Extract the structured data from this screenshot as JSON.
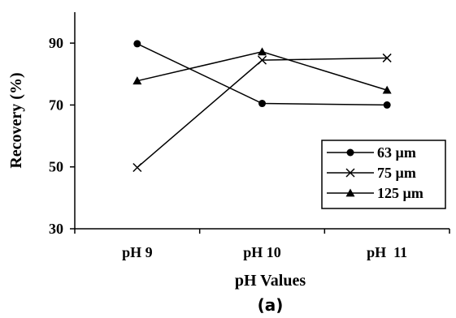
{
  "chart_data": {
    "type": "line",
    "categories": [
      "pH 9",
      "pH 10",
      "pH  11"
    ],
    "series": [
      {
        "name": "63 µm",
        "marker": "circle",
        "values": [
          89.8,
          70.5,
          70.0
        ]
      },
      {
        "name": "75 µm",
        "marker": "x",
        "values": [
          49.8,
          84.5,
          85.2
        ]
      },
      {
        "name": "125 µm",
        "marker": "triangle",
        "values": [
          77.8,
          87.2,
          74.8
        ]
      }
    ],
    "xlabel": "pH Values",
    "ylabel": "Recovery (%)",
    "ylim": [
      30,
      100
    ],
    "yticks": [
      30,
      50,
      70,
      90
    ],
    "ytick_labels": [
      "30",
      "50",
      "70",
      "90"
    ],
    "grid": false,
    "legend": "bottom-right",
    "line_color": "#000000",
    "panel_label": "(a)"
  }
}
